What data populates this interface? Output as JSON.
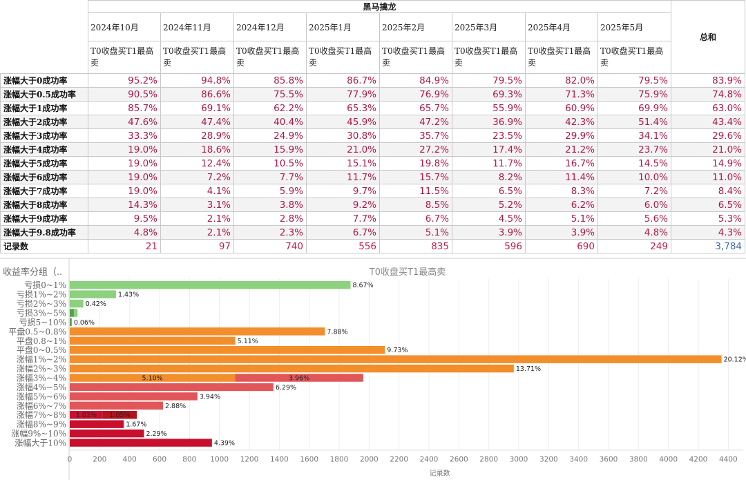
{
  "table": {
    "group_title": "黑马擒龙",
    "total_label": "总和",
    "strategy_label": "T0收盘买T1最高卖",
    "months": [
      "2024年10月",
      "2024年11月",
      "2024年12月",
      "2025年1月",
      "2025年2月",
      "2025年3月",
      "2025年4月",
      "2025年5月"
    ],
    "rows": [
      {
        "label": "涨幅大于0成功率",
        "values": [
          "95.2%",
          "94.8%",
          "85.8%",
          "86.7%",
          "84.9%",
          "79.5%",
          "82.0%",
          "79.5%"
        ],
        "total": "83.9%"
      },
      {
        "label": "涨幅大于0.5成功率",
        "values": [
          "90.5%",
          "86.6%",
          "75.5%",
          "77.9%",
          "76.9%",
          "69.3%",
          "71.3%",
          "75.9%"
        ],
        "total": "74.8%"
      },
      {
        "label": "涨幅大于1成功率",
        "values": [
          "85.7%",
          "69.1%",
          "62.2%",
          "65.3%",
          "65.7%",
          "55.9%",
          "60.9%",
          "69.9%"
        ],
        "total": "63.0%"
      },
      {
        "label": "涨幅大于2成功率",
        "values": [
          "47.6%",
          "47.4%",
          "40.4%",
          "45.9%",
          "47.2%",
          "36.9%",
          "42.3%",
          "51.4%"
        ],
        "total": "43.4%"
      },
      {
        "label": "涨幅大于3成功率",
        "values": [
          "33.3%",
          "28.9%",
          "24.9%",
          "30.8%",
          "35.7%",
          "23.5%",
          "29.9%",
          "34.1%"
        ],
        "total": "29.6%"
      },
      {
        "label": "涨幅大于4成功率",
        "values": [
          "19.0%",
          "18.6%",
          "15.9%",
          "21.0%",
          "27.2%",
          "17.4%",
          "21.2%",
          "23.7%"
        ],
        "total": "21.0%"
      },
      {
        "label": "涨幅大于5成功率",
        "values": [
          "19.0%",
          "12.4%",
          "10.5%",
          "15.1%",
          "19.8%",
          "11.7%",
          "16.7%",
          "14.5%"
        ],
        "total": "14.9%"
      },
      {
        "label": "涨幅大于6成功率",
        "values": [
          "19.0%",
          "7.2%",
          "7.7%",
          "11.7%",
          "15.7%",
          "8.2%",
          "11.4%",
          "10.0%"
        ],
        "total": "11.0%"
      },
      {
        "label": "涨幅大于7成功率",
        "values": [
          "19.0%",
          "4.1%",
          "5.9%",
          "9.7%",
          "11.5%",
          "6.5%",
          "8.3%",
          "7.2%"
        ],
        "total": "8.4%"
      },
      {
        "label": "涨幅大于8成功率",
        "values": [
          "14.3%",
          "3.1%",
          "3.8%",
          "9.2%",
          "8.5%",
          "5.2%",
          "6.2%",
          "6.0%"
        ],
        "total": "6.5%"
      },
      {
        "label": "涨幅大于9成功率",
        "values": [
          "9.5%",
          "2.1%",
          "2.8%",
          "7.7%",
          "6.7%",
          "4.5%",
          "5.1%",
          "5.6%"
        ],
        "total": "5.3%"
      },
      {
        "label": "涨幅大于9.8成功率",
        "values": [
          "4.8%",
          "2.1%",
          "2.3%",
          "6.7%",
          "5.1%",
          "3.9%",
          "3.9%",
          "4.8%"
        ],
        "total": "4.3%"
      }
    ],
    "count_row": {
      "label": "记录数",
      "values": [
        "21",
        "97",
        "740",
        "556",
        "835",
        "596",
        "690",
        "249"
      ],
      "total": "3,784"
    }
  },
  "chart_data": {
    "type": "bar",
    "orientation": "horizontal",
    "title": "T0收盘买T1最高卖",
    "row_header": "收益率分组（..",
    "xlabel": "记录数",
    "xlim": [
      0,
      4500
    ],
    "xticks": [
      0,
      200,
      400,
      600,
      800,
      1000,
      1200,
      1400,
      1600,
      1800,
      2000,
      2200,
      2400,
      2600,
      2800,
      3000,
      3200,
      3400,
      3600,
      3800,
      4000,
      4200,
      4400
    ],
    "grid": true,
    "categories": [
      "亏损0~1%",
      "亏损1%~2%",
      "亏损2%~3%",
      "亏损3%~5%",
      "亏损5~10%",
      "平盘0.5~0.8%",
      "平盘0.8~1%",
      "平盘0~0.5%",
      "涨幅1%~2%",
      "涨幅2%~3%",
      "涨幅3%~4%",
      "涨幅4%~5%",
      "涨幅5%~6%",
      "涨幅6%~7%",
      "涨幅7%~8%",
      "涨幅8%~9%",
      "涨幅9%~10%",
      "涨幅大于10%"
    ],
    "bars": [
      {
        "segments": [
          {
            "value": 1876,
            "color": "#8cd17d",
            "label": "8.67%"
          }
        ]
      },
      {
        "segments": [
          {
            "value": 309,
            "color": "#8cd17d",
            "label": "1.43%"
          }
        ]
      },
      {
        "segments": [
          {
            "value": 91,
            "color": "#8cd17d",
            "label": "0.42%"
          }
        ]
      },
      {
        "segments": [
          {
            "value": 28,
            "color": "#59a14f",
            "label": ""
          },
          {
            "value": 24,
            "color": "#8cd17d",
            "label": ""
          }
        ]
      },
      {
        "segments": [
          {
            "value": 13,
            "color": "#59a14f",
            "label": "0.06%"
          }
        ]
      },
      {
        "segments": [
          {
            "value": 1705,
            "color": "#f28e2b",
            "label": "7.88%"
          }
        ]
      },
      {
        "segments": [
          {
            "value": 1106,
            "color": "#f28e2b",
            "label": "5.11%"
          }
        ]
      },
      {
        "segments": [
          {
            "value": 2106,
            "color": "#f28e2b",
            "label": "9.73%"
          }
        ]
      },
      {
        "segments": [
          {
            "value": 4355,
            "color": "#f28e2b",
            "label": "20.12%"
          }
        ]
      },
      {
        "segments": [
          {
            "value": 2967,
            "color": "#f28e2b",
            "label": "13.71%"
          }
        ]
      },
      {
        "segments": [
          {
            "value": 1104,
            "color": "#f28e2b",
            "label": "5.10%"
          },
          {
            "value": 857,
            "color": "#e15759",
            "label": "3.96%"
          }
        ]
      },
      {
        "segments": [
          {
            "value": 1361,
            "color": "#e15759",
            "label": "6.29%"
          }
        ]
      },
      {
        "segments": [
          {
            "value": 853,
            "color": "#e15759",
            "label": "3.94%"
          }
        ]
      },
      {
        "segments": [
          {
            "value": 623,
            "color": "#e15759",
            "label": "2.88%"
          }
        ]
      },
      {
        "segments": [
          {
            "value": 221,
            "color": "#c8102e",
            "label": "1.02%"
          },
          {
            "value": 227,
            "color": "#b5121b",
            "label": "1.05%"
          }
        ]
      },
      {
        "segments": [
          {
            "value": 361,
            "color": "#c8102e",
            "label": "1.67%"
          }
        ]
      },
      {
        "segments": [
          {
            "value": 496,
            "color": "#c8102e",
            "label": "2.29%"
          }
        ]
      },
      {
        "segments": [
          {
            "value": 950,
            "color": "#c8102e",
            "label": "4.39%"
          }
        ]
      }
    ]
  }
}
